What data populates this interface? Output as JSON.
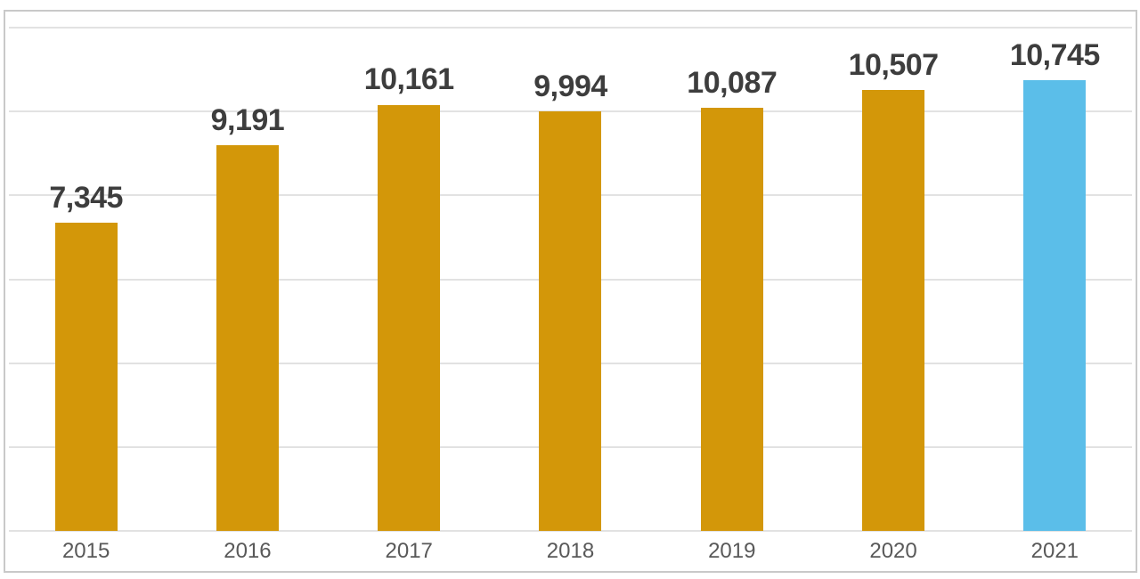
{
  "chart_data": {
    "type": "bar",
    "title": "",
    "xlabel": "",
    "ylabel": "",
    "categories": [
      "2015",
      "2016",
      "2017",
      "2018",
      "2019",
      "2020",
      "2021"
    ],
    "values": [
      7345,
      9191,
      10161,
      9994,
      10087,
      10507,
      10745
    ],
    "data_labels": [
      "7,345",
      "9,191",
      "10,161",
      "9,994",
      "10,087",
      "10,507",
      "10,745"
    ],
    "bar_colors": [
      "#D39709",
      "#D39709",
      "#D39709",
      "#D39709",
      "#D39709",
      "#D39709",
      "#5BBEE9"
    ],
    "ylim": [
      0,
      12000
    ],
    "gridline_step": 2000,
    "grid": "on",
    "y_tick_labels_visible": false,
    "legend": "none"
  },
  "theme": {
    "background": "#ffffff",
    "frame_border": "#c9c9c9",
    "gridline": "#e2e2e2",
    "data_label_color": "#3d3d3d",
    "axis_label_color": "#595959",
    "default_bar_color": "#D39709",
    "highlight_bar_color": "#5BBEE9"
  }
}
